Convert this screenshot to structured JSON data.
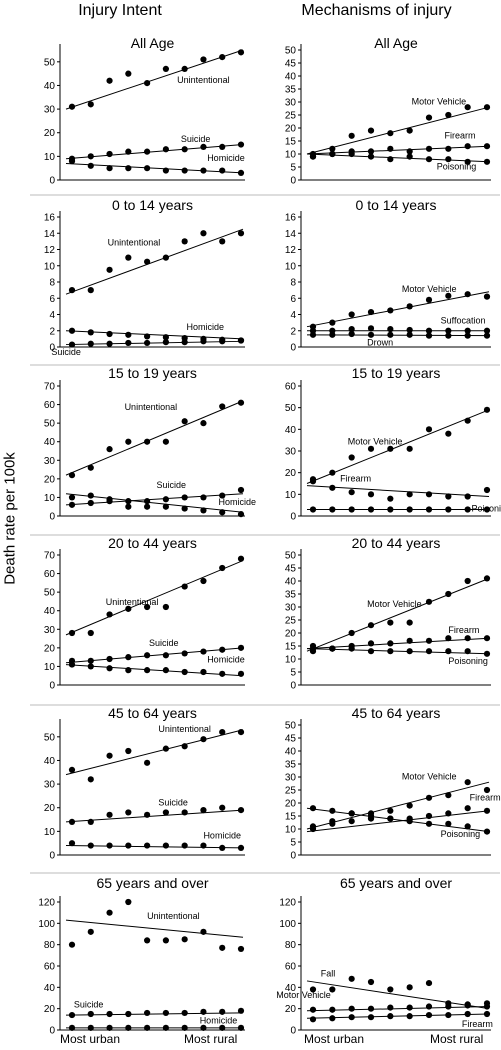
{
  "figure": {
    "column_titles": [
      "Injury Intent",
      "Mechanisms of injury"
    ],
    "ylabel": "Death rate per 100k",
    "x_categories": [
      "Most urban",
      "Most rural"
    ]
  },
  "chart_data": [
    {
      "type": "scatter",
      "title": "All Age",
      "column": 0,
      "row": 0,
      "ylim": [
        0,
        55
      ],
      "yticks": [
        0,
        10,
        20,
        30,
        40,
        50
      ],
      "series": [
        {
          "name": "Unintentional",
          "values": [
            31,
            32,
            42,
            45,
            41,
            47,
            47,
            51,
            52,
            54
          ],
          "trend": [
            30,
            55
          ],
          "label_at": [
            5.6,
            41
          ]
        },
        {
          "name": "Suicide",
          "values": [
            9,
            10,
            11,
            12,
            12,
            13,
            13,
            14,
            14,
            15
          ],
          "trend": [
            9,
            15
          ],
          "label_at": [
            5.8,
            16
          ]
        },
        {
          "name": "Homicide",
          "values": [
            8,
            6,
            5,
            5,
            5,
            4,
            4,
            4,
            4,
            3
          ],
          "trend": [
            7,
            3
          ],
          "label_at": [
            7.2,
            8
          ]
        }
      ]
    },
    {
      "type": "scatter",
      "title": "All Age",
      "column": 1,
      "row": 0,
      "ylim": [
        0,
        50
      ],
      "yticks": [
        0,
        5,
        10,
        15,
        20,
        25,
        30,
        35,
        40,
        45,
        50
      ],
      "series": [
        {
          "name": "Motor Vehicle",
          "values": [
            10,
            12,
            17,
            19,
            18,
            19,
            24,
            25,
            28,
            28
          ],
          "trend": [
            10,
            28
          ],
          "label_at": [
            5.1,
            29
          ]
        },
        {
          "name": "Firearm",
          "values": [
            9,
            10,
            11,
            11,
            12,
            11,
            12,
            12,
            13,
            13
          ],
          "trend": [
            10,
            13
          ],
          "label_at": [
            6.8,
            16
          ]
        },
        {
          "name": "Poisoning",
          "values": [
            9,
            10,
            10,
            9,
            8,
            9,
            8,
            8,
            7,
            7
          ],
          "trend": [
            10,
            7
          ],
          "label_at": [
            6.4,
            4
          ]
        }
      ]
    },
    {
      "type": "scatter",
      "title": "0 to 14 years",
      "column": 0,
      "row": 1,
      "ylim": [
        0,
        16
      ],
      "yticks": [
        0,
        2,
        4,
        6,
        8,
        10,
        12,
        14,
        16
      ],
      "series": [
        {
          "name": "Unintentional",
          "values": [
            7,
            7,
            9.5,
            11,
            10.5,
            11,
            13,
            14,
            13,
            14
          ],
          "trend": [
            6.5,
            14.5
          ],
          "label_at": [
            1.9,
            12.5
          ]
        },
        {
          "name": "Homicide",
          "values": [
            2,
            1.8,
            1.6,
            1.5,
            1.3,
            1.2,
            1.1,
            1,
            0.9,
            0.8
          ],
          "trend": [
            2,
            1
          ],
          "label_at": [
            6.1,
            2.1
          ]
        },
        {
          "name": "Suicide",
          "values": [
            0.3,
            0.4,
            0.4,
            0.5,
            0.5,
            0.6,
            0.6,
            0.7,
            0.7,
            0.8
          ],
          "trend": [
            0.3,
            0.7
          ],
          "label_at": [
            -1.1,
            -1
          ]
        }
      ]
    },
    {
      "type": "scatter",
      "title": "0 to 14 years",
      "column": 1,
      "row": 1,
      "ylim": [
        0,
        16
      ],
      "yticks": [
        0,
        2,
        4,
        6,
        8,
        10,
        12,
        14,
        16
      ],
      "series": [
        {
          "name": "Motor Vehicle",
          "values": [
            2.5,
            3,
            4,
            4.3,
            4.5,
            5,
            5.8,
            6.3,
            6.5,
            6.2
          ],
          "trend": [
            2.5,
            6.8
          ],
          "label_at": [
            4.6,
            6.8
          ]
        },
        {
          "name": "Suffocation",
          "values": [
            2,
            2,
            2.2,
            2.3,
            2.2,
            2.1,
            2,
            2,
            2,
            2
          ],
          "trend": [
            2,
            2
          ],
          "label_at": [
            6.6,
            2.9
          ]
        },
        {
          "name": "Drown",
          "values": [
            1.5,
            1.5,
            1.6,
            1.5,
            1.5,
            1.5,
            1.4,
            1.4,
            1.4,
            1.4
          ],
          "trend": [
            1.5,
            1.4
          ],
          "label_at": [
            2.8,
            0.2
          ]
        }
      ]
    },
    {
      "type": "scatter",
      "title": "15 to 19 years",
      "column": 0,
      "row": 2,
      "ylim": [
        0,
        70
      ],
      "yticks": [
        0,
        10,
        20,
        30,
        40,
        50,
        60,
        70
      ],
      "series": [
        {
          "name": "Unintentional",
          "values": [
            22,
            26,
            36,
            40,
            40,
            40,
            51,
            50,
            59,
            61
          ],
          "trend": [
            22,
            62
          ],
          "label_at": [
            2.8,
            57
          ]
        },
        {
          "name": "Suicide",
          "values": [
            6,
            7,
            8,
            8,
            8,
            9,
            10,
            10,
            11,
            14
          ],
          "trend": [
            6,
            12
          ],
          "label_at": [
            4.5,
            15
          ]
        },
        {
          "name": "Homicide",
          "values": [
            10,
            11,
            9,
            5,
            5,
            5,
            4,
            3,
            2,
            1
          ],
          "trend": [
            12,
            2
          ],
          "label_at": [
            7.8,
            6
          ]
        }
      ]
    },
    {
      "type": "scatter",
      "title": "15 to 19 years",
      "column": 1,
      "row": 2,
      "ylim": [
        0,
        60
      ],
      "yticks": [
        0,
        10,
        20,
        30,
        40,
        50,
        60
      ],
      "series": [
        {
          "name": "Motor Vehicle",
          "values": [
            17,
            20,
            27,
            31,
            31,
            31,
            40,
            38,
            44,
            49
          ],
          "trend": [
            15,
            49
          ],
          "label_at": [
            1.8,
            33
          ]
        },
        {
          "name": "Firearm",
          "values": [
            16,
            13,
            11,
            10,
            8,
            10,
            10,
            9,
            9,
            12
          ],
          "trend": [
            14,
            9
          ],
          "label_at": [
            1.4,
            16
          ]
        },
        {
          "name": "Poisoning",
          "values": [
            3,
            3,
            3,
            3,
            3,
            3,
            3,
            3,
            3,
            3
          ],
          "trend": [
            3,
            3
          ],
          "label_at": [
            8.2,
            2
          ]
        }
      ]
    },
    {
      "type": "scatter",
      "title": "20 to 44 years",
      "column": 0,
      "row": 3,
      "ylim": [
        0,
        70
      ],
      "yticks": [
        0,
        10,
        20,
        30,
        40,
        50,
        60,
        70
      ],
      "series": [
        {
          "name": "Unintentional",
          "values": [
            28,
            28,
            38,
            41,
            42,
            42,
            53,
            56,
            63,
            68
          ],
          "trend": [
            27,
            67
          ],
          "label_at": [
            1.8,
            43
          ]
        },
        {
          "name": "Suicide",
          "values": [
            13,
            13,
            14,
            15,
            16,
            16,
            17,
            18,
            19,
            20
          ],
          "trend": [
            12,
            20
          ],
          "label_at": [
            4.1,
            21
          ]
        },
        {
          "name": "Homicide",
          "values": [
            11,
            10,
            9,
            8,
            8,
            8,
            7,
            7,
            6,
            6
          ],
          "trend": [
            11,
            5
          ],
          "label_at": [
            7.2,
            12
          ]
        }
      ]
    },
    {
      "type": "scatter",
      "title": "20 to 44 years",
      "column": 1,
      "row": 3,
      "ylim": [
        0,
        50
      ],
      "yticks": [
        0,
        5,
        10,
        15,
        20,
        25,
        30,
        35,
        40,
        45,
        50
      ],
      "series": [
        {
          "name": "Motor Vehicle",
          "values": [
            15,
            14,
            20,
            23,
            24,
            24,
            32,
            35,
            40,
            41
          ],
          "trend": [
            13,
            41
          ],
          "label_at": [
            2.8,
            30
          ]
        },
        {
          "name": "Firearm",
          "values": [
            14,
            14,
            15,
            16,
            16,
            17,
            17,
            18,
            18,
            18
          ],
          "trend": [
            14,
            18
          ],
          "label_at": [
            7.0,
            20
          ]
        },
        {
          "name": "Poisoning",
          "values": [
            13,
            14,
            14,
            13,
            13,
            13,
            13,
            13,
            13,
            12
          ],
          "trend": [
            14,
            12
          ],
          "label_at": [
            7.0,
            8
          ]
        }
      ]
    },
    {
      "type": "scatter",
      "title": "45 to 64 years",
      "column": 0,
      "row": 4,
      "ylim": [
        0,
        55
      ],
      "yticks": [
        0,
        10,
        20,
        30,
        40,
        50
      ],
      "series": [
        {
          "name": "Unintentional",
          "values": [
            36,
            32,
            42,
            44,
            39,
            45,
            46,
            49,
            52,
            52
          ],
          "trend": [
            34,
            53
          ],
          "label_at": [
            4.6,
            52
          ]
        },
        {
          "name": "Suicide",
          "values": [
            14,
            14,
            17,
            18,
            17,
            18,
            18,
            19,
            20,
            19
          ],
          "trend": [
            14,
            19
          ],
          "label_at": [
            4.6,
            21
          ]
        },
        {
          "name": "Homicide",
          "values": [
            5,
            4,
            4,
            4,
            4,
            4,
            4,
            4,
            3,
            3
          ],
          "trend": [
            4,
            3
          ],
          "label_at": [
            7.0,
            7
          ]
        }
      ]
    },
    {
      "type": "scatter",
      "title": "45 to 64 years",
      "column": 1,
      "row": 4,
      "ylim": [
        0,
        50
      ],
      "yticks": [
        0,
        5,
        10,
        15,
        20,
        25,
        30,
        35,
        40,
        45,
        50
      ],
      "series": [
        {
          "name": "Motor Vehicle",
          "values": [
            11,
            13,
            16,
            16,
            17,
            19,
            22,
            23,
            28,
            25
          ],
          "trend": [
            10,
            28
          ],
          "label_at": [
            4.6,
            29
          ]
        },
        {
          "name": "Firearm",
          "values": [
            10,
            12,
            13,
            14,
            14,
            14,
            15,
            16,
            18,
            17
          ],
          "trend": [
            9,
            17
          ],
          "label_at": [
            8.1,
            21
          ]
        },
        {
          "name": "Poisoning",
          "values": [
            18,
            17,
            16,
            15,
            14,
            13,
            12,
            12,
            11,
            9
          ],
          "trend": [
            18,
            9
          ],
          "label_at": [
            6.6,
            7
          ]
        }
      ]
    },
    {
      "type": "scatter",
      "title": "65 years and over",
      "column": 0,
      "row": 5,
      "ylim": [
        0,
        120
      ],
      "yticks": [
        0,
        20,
        40,
        60,
        80,
        100,
        120
      ],
      "series": [
        {
          "name": "Unintentional",
          "values": [
            80,
            92,
            110,
            120,
            84,
            84,
            85,
            92,
            77,
            76
          ],
          "trend": [
            103,
            87
          ],
          "label_at": [
            4.0,
            104
          ]
        },
        {
          "name": "Suicide",
          "values": [
            14,
            15,
            15,
            15,
            16,
            16,
            16,
            17,
            17,
            18
          ],
          "trend": [
            14,
            16
          ],
          "label_at": [
            0.1,
            21
          ]
        },
        {
          "name": "Homicide",
          "values": [
            2,
            2,
            2,
            2,
            2,
            2,
            2,
            2,
            2,
            2
          ],
          "trend": [
            2,
            2
          ],
          "label_at": [
            6.8,
            6
          ]
        }
      ]
    },
    {
      "type": "scatter",
      "title": "65 years and over",
      "column": 1,
      "row": 5,
      "ylim": [
        0,
        120
      ],
      "yticks": [
        0,
        20,
        40,
        60,
        80,
        100,
        120
      ],
      "series": [
        {
          "name": "Fall",
          "values": [
            38,
            38,
            48,
            45,
            38,
            40,
            44,
            25,
            24,
            25
          ],
          "trend": [
            46,
            20
          ],
          "label_at": [
            0.4,
            50
          ]
        },
        {
          "name": "Motor Vehicle",
          "values": [
            19,
            19,
            20,
            20,
            21,
            21,
            22,
            22,
            23,
            22
          ],
          "trend": [
            18,
            22
          ],
          "label_at": [
            -1.9,
            30
          ]
        },
        {
          "name": "Firearm",
          "values": [
            10,
            11,
            12,
            12,
            13,
            13,
            14,
            14,
            15,
            15
          ],
          "trend": [
            11,
            15
          ],
          "label_at": [
            7.7,
            3
          ]
        }
      ]
    }
  ]
}
